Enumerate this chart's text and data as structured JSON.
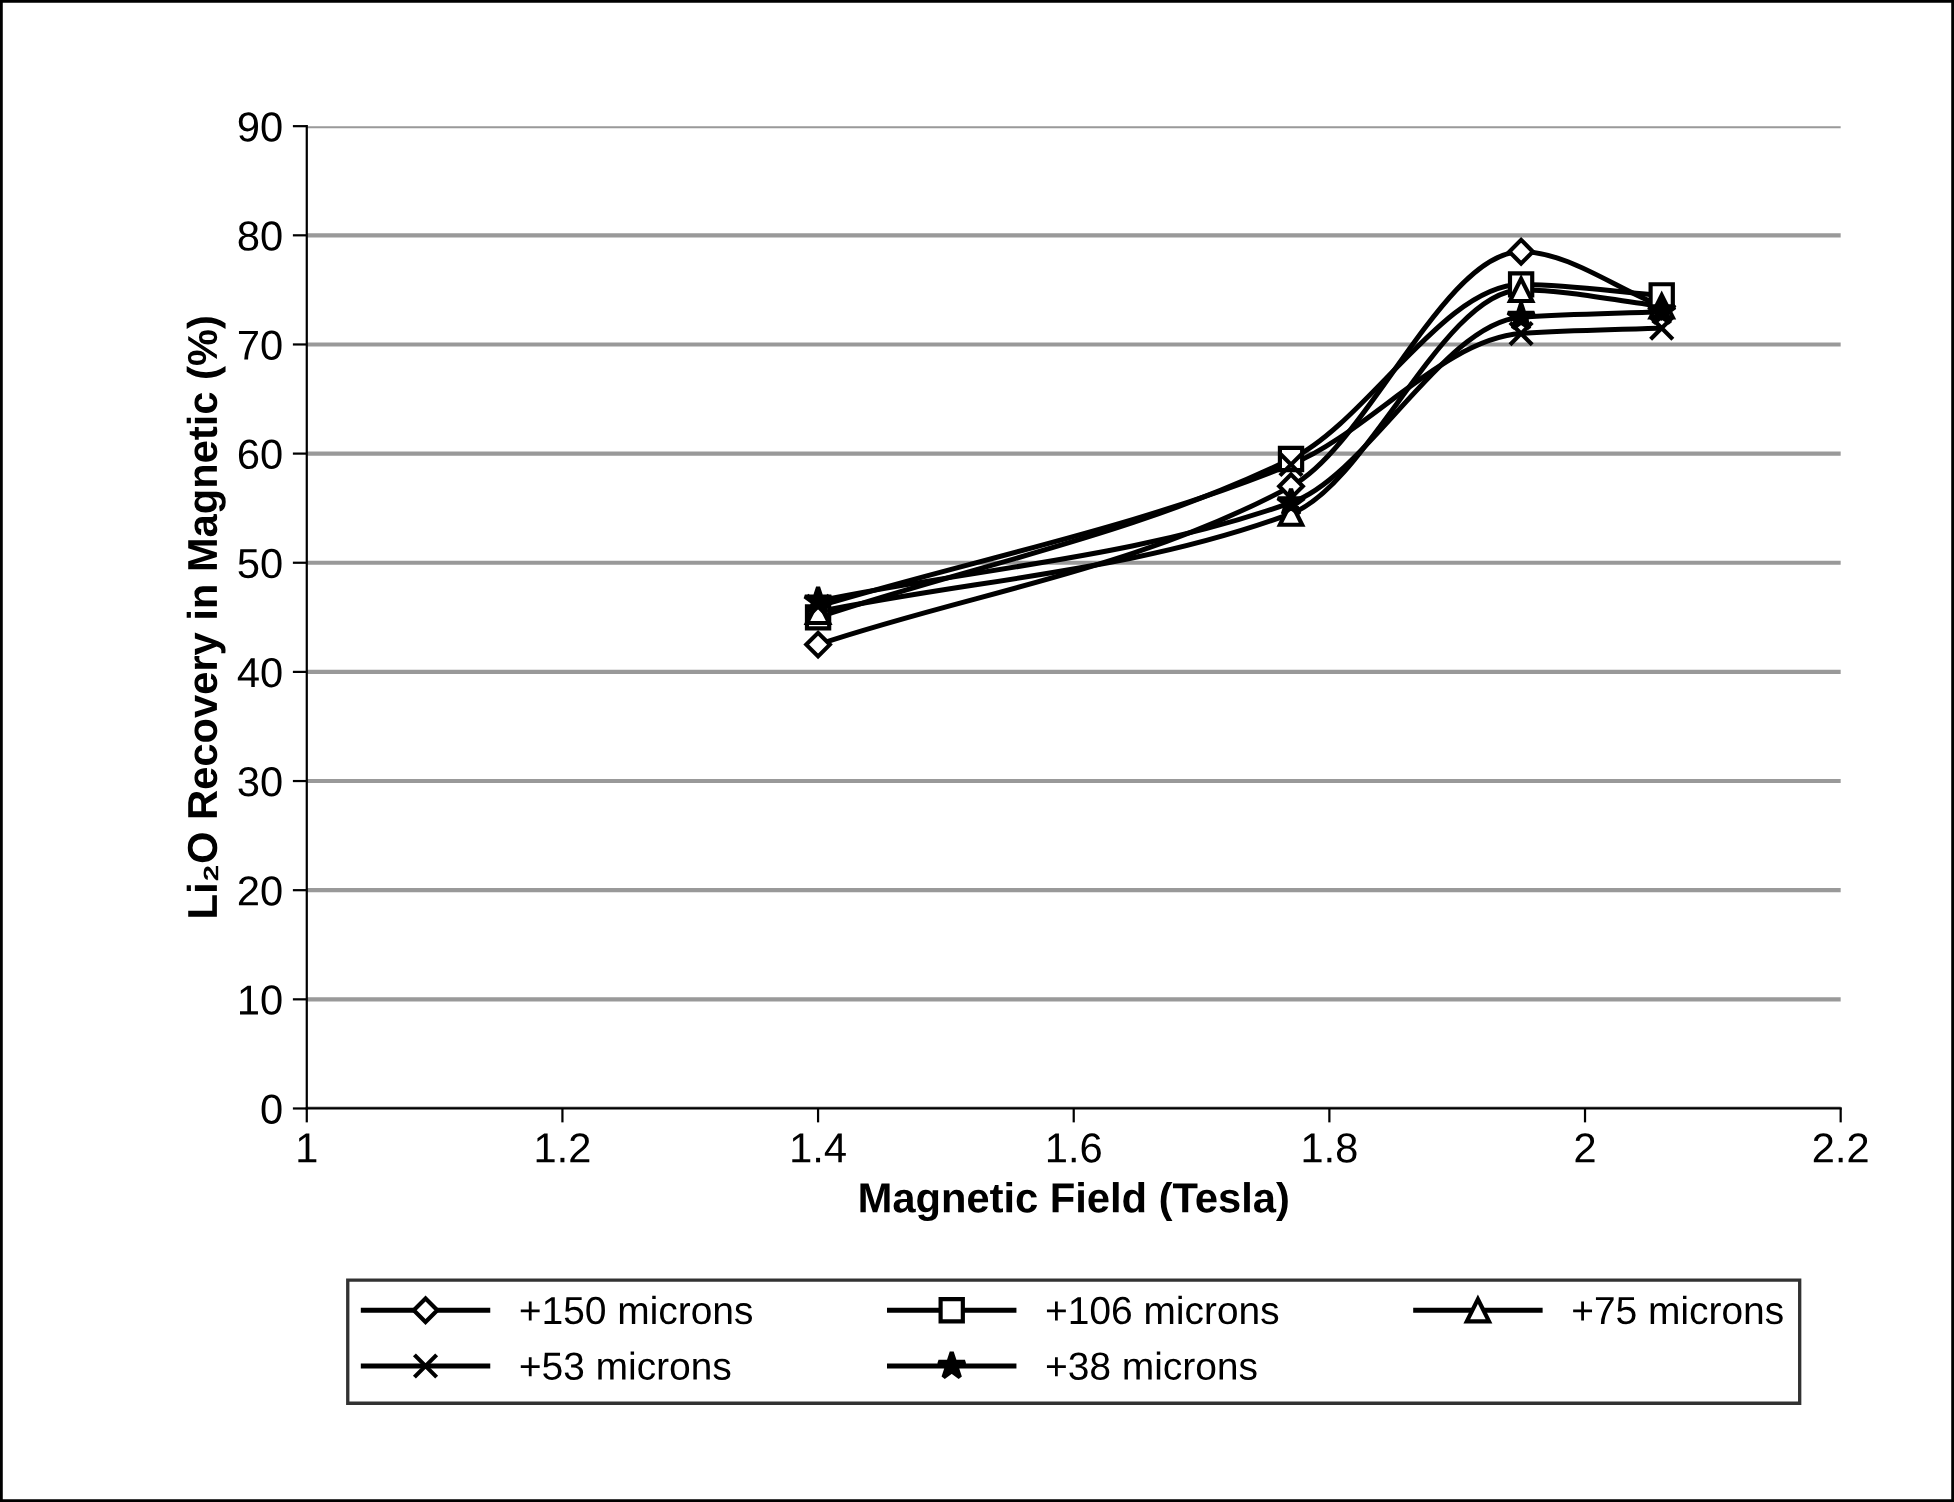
{
  "chart_data": {
    "type": "line",
    "xlabel": "Magnetic Field (Tesla)",
    "ylabel": "Li₂O Recovery in Magnetic (%)",
    "x": [
      1.4,
      1.77,
      1.95,
      2.06
    ],
    "series": [
      {
        "name": "+150 microns",
        "color": "#000000",
        "marker": "diamond",
        "values": [
          42.5,
          57,
          78.5,
          73.5
        ]
      },
      {
        "name": "+106 microns",
        "color": "#000000",
        "marker": "square",
        "values": [
          45,
          59.5,
          75.5,
          74.5
        ]
      },
      {
        "name": "+75 microns",
        "color": "#000000",
        "marker": "triangle",
        "values": [
          45.5,
          54.5,
          75,
          73.5
        ]
      },
      {
        "name": "+53 microns",
        "color": "#000000",
        "marker": "cross",
        "values": [
          46,
          59,
          71,
          71.5
        ]
      },
      {
        "name": "+38 microns",
        "color": "#000000",
        "marker": "star",
        "values": [
          46.5,
          55.5,
          72.5,
          73
        ]
      }
    ],
    "xlim": [
      1,
      2.2
    ],
    "xticks": [
      1,
      1.2,
      1.4,
      1.6,
      1.8,
      2,
      2.2
    ],
    "ylim": [
      0,
      90
    ],
    "yticks": [
      0,
      10,
      20,
      30,
      40,
      50,
      60,
      70,
      80,
      90
    ],
    "grid": "y",
    "legend": "bottom",
    "line_style": "solid"
  }
}
